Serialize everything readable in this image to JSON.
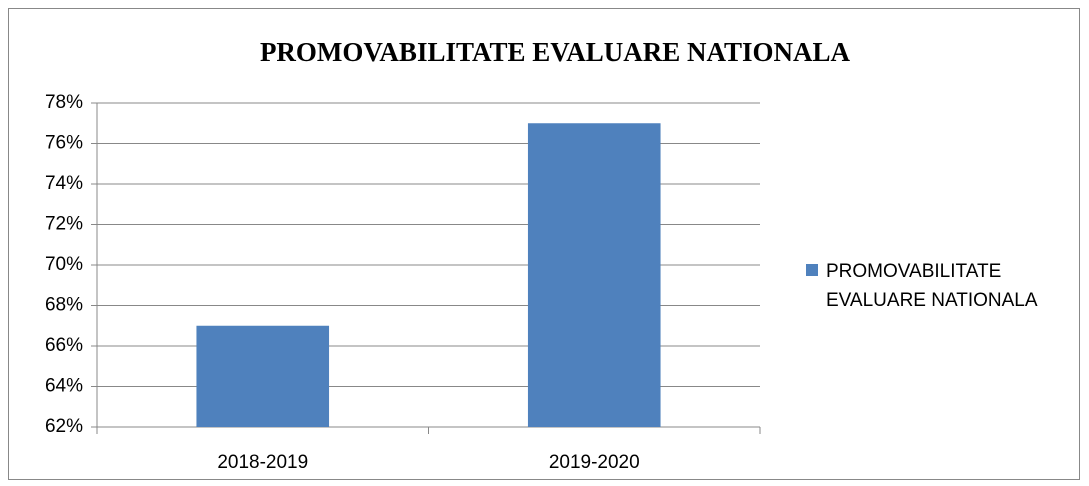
{
  "chart_data": {
    "type": "bar",
    "title": "PROMOVABILITATE EVALUARE NATIONALA",
    "categories": [
      "2018-2019",
      "2019-2020"
    ],
    "series": [
      {
        "name": "PROMOVABILITATE EVALUARE NATIONALA",
        "color": "#4f81bd",
        "values": [
          67,
          77
        ]
      }
    ],
    "ylim": [
      62,
      78
    ],
    "yticks": [
      {
        "value": 62,
        "label": "62%"
      },
      {
        "value": 64,
        "label": "64%"
      },
      {
        "value": 66,
        "label": "66%"
      },
      {
        "value": 68,
        "label": "68%"
      },
      {
        "value": 70,
        "label": "70%"
      },
      {
        "value": 72,
        "label": "72%"
      },
      {
        "value": 74,
        "label": "74%"
      },
      {
        "value": 76,
        "label": "76%"
      },
      {
        "value": 78,
        "label": "78%"
      }
    ],
    "grid": true,
    "legend": "right"
  }
}
